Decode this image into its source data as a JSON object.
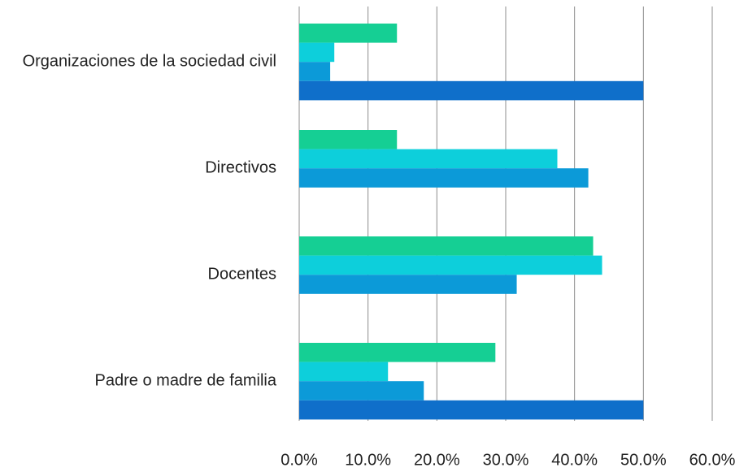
{
  "chart_data": {
    "type": "bar",
    "orientation": "horizontal",
    "categories": [
      "Organizaciones de la sociedad civil",
      "Directivos",
      "Docentes",
      "Padre o madre de familia"
    ],
    "series": [
      {
        "color": "#15cf94",
        "values": [
          14.2,
          14.2,
          42.7,
          28.5
        ]
      },
      {
        "color": "#0dcfdb",
        "values": [
          5.1,
          37.5,
          44.0,
          12.9
        ]
      },
      {
        "color": "#0c9ad8",
        "values": [
          4.5,
          42.0,
          31.6,
          18.1
        ]
      },
      {
        "color": "#0f6fca",
        "values": [
          50.0,
          null,
          null,
          50.0
        ]
      }
    ],
    "xlim": [
      0,
      60
    ],
    "xticks": [
      {
        "value": 0,
        "label": "0.0%"
      },
      {
        "value": 10,
        "label": "10.0%"
      },
      {
        "value": 20,
        "label": "20.0%"
      },
      {
        "value": 30,
        "label": "30.0%"
      },
      {
        "value": 40,
        "label": "40.0%"
      },
      {
        "value": 50,
        "label": "50.0%"
      },
      {
        "value": 60,
        "label": "60.0%"
      }
    ],
    "grid": true
  }
}
